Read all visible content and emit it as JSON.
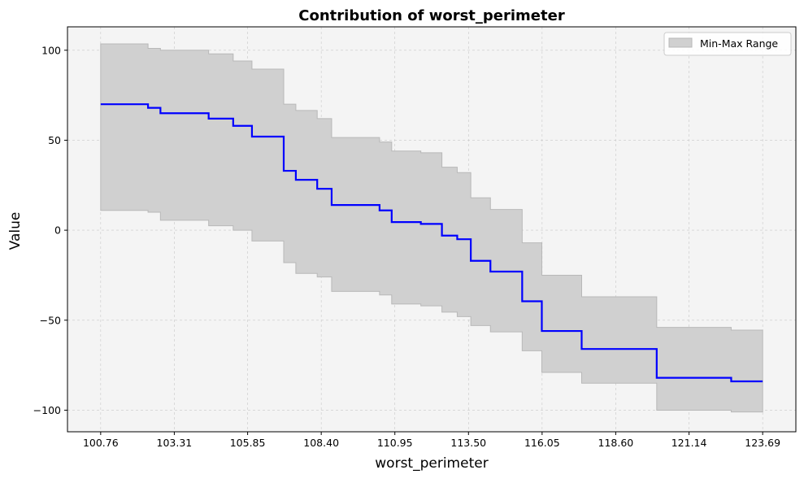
{
  "chart_data": {
    "type": "line",
    "step": "post",
    "title": "Contribution of worst_perimeter",
    "xlabel": "worst_perimeter",
    "ylabel": "Value",
    "xlim": [
      99.61,
      124.84
    ],
    "ylim": [
      -112,
      113
    ],
    "xticks": [
      100.76,
      103.31,
      105.85,
      108.4,
      110.95,
      113.5,
      116.05,
      118.6,
      121.14,
      123.69
    ],
    "xtick_labels": [
      "100.76",
      "103.31",
      "105.85",
      "108.40",
      "110.95",
      "113.50",
      "116.05",
      "118.60",
      "121.14",
      "123.69"
    ],
    "yticks": [
      100,
      50,
      0,
      -50,
      -100
    ],
    "ytick_labels": [
      "100",
      "50",
      "0",
      "−50",
      "−100"
    ],
    "grid": true,
    "legend": {
      "placement": "top-right",
      "entries": [
        "Min-Max Range"
      ]
    },
    "colors": {
      "line": "#0000ff",
      "band": "#d0d0d0",
      "band_edge": "#b8b8b8",
      "plot_bg": "#f4f4f4",
      "grid": "#c8c8c8"
    },
    "series": [
      {
        "kind": "step-line",
        "x": [
          100.76,
          102.4,
          102.83,
          104.5,
          105.35,
          106.0,
          107.1,
          107.52,
          108.26,
          108.76,
          110.42,
          110.84,
          111.85,
          112.58,
          113.11,
          113.58,
          114.26,
          115.36,
          116.04,
          117.42,
          120.02,
          122.6,
          123.69
        ],
        "y": [
          70,
          68,
          65,
          62,
          58,
          52,
          33,
          28,
          23,
          14,
          11,
          4.5,
          3.5,
          -3,
          -5,
          -17,
          -23,
          -39.5,
          -56,
          -66,
          -82,
          -84,
          -84
        ]
      },
      {
        "kind": "band",
        "name": "Min-Max Range",
        "x": [
          100.76,
          102.4,
          102.83,
          104.5,
          105.35,
          106.0,
          107.1,
          107.52,
          108.26,
          108.76,
          110.42,
          110.84,
          111.85,
          112.58,
          113.11,
          113.58,
          114.26,
          115.36,
          116.04,
          117.42,
          120.02,
          122.6,
          123.69
        ],
        "y_min": [
          11,
          10,
          5.5,
          2.5,
          0,
          -6,
          -18,
          -24,
          -26,
          -34,
          -36,
          -41,
          -42,
          -45.5,
          -48,
          -53,
          -56.5,
          -67,
          -79,
          -85,
          -100,
          -101,
          -101
        ],
        "y_max": [
          103.5,
          101,
          100,
          98,
          94,
          89.5,
          70,
          66.5,
          62,
          51.5,
          49,
          44,
          43,
          35,
          32,
          18,
          11.5,
          -7,
          -25,
          -37,
          -54,
          -55.5,
          -55.5
        ]
      }
    ]
  }
}
